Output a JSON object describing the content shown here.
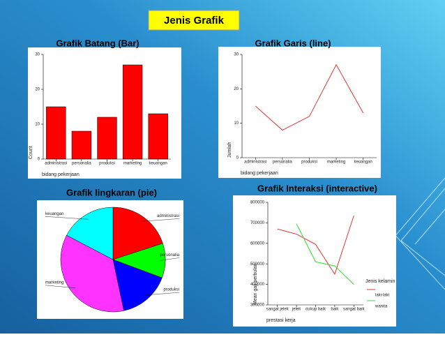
{
  "title": "Jenis Grafik",
  "chart_data": [
    {
      "type": "bar",
      "title": "Grafik Batang (Bar)",
      "x_label": "bidang pekerjaan",
      "y_label": "Count",
      "categories": [
        "administrasi",
        "personalia",
        "produksi",
        "marketing",
        "keuangan"
      ],
      "values": [
        15,
        8,
        12,
        27,
        13
      ],
      "color": "#ff0000",
      "ylim": [
        0,
        30
      ],
      "yticks": [
        0,
        10,
        20,
        30
      ]
    },
    {
      "type": "line",
      "title": "Grafik Garis (line)",
      "x_label": "bidang pekerjaan",
      "y_label": "Jumlah",
      "categories": [
        "administrasi",
        "personalia",
        "produksi",
        "marketing",
        "keuangan"
      ],
      "values": [
        15,
        8,
        12,
        27,
        13
      ],
      "color": "#e83030",
      "ylim": [
        0,
        30
      ],
      "yticks": [
        0,
        10,
        20,
        30
      ]
    },
    {
      "type": "pie",
      "title": "Grafik lingkaran (pie)",
      "categories": [
        "administrasi",
        "personalia",
        "produksi",
        "marketing",
        "keuangan"
      ],
      "values": [
        15,
        8,
        12,
        27,
        13
      ],
      "colors": [
        "#ff0000",
        "#00ff00",
        "#0000ff",
        "#ff33ff",
        "#00ffff"
      ]
    },
    {
      "type": "line",
      "title": "Grafik Interaksi (interactive)",
      "x_label": "prestasi kerja",
      "y_label": "Mean gaji perbulan",
      "categories": [
        "sangat jelek",
        "jelek",
        "cukup baik",
        "baik",
        "sangat baik"
      ],
      "ylim": [
        300000,
        800000
      ],
      "yticks": [
        300000,
        400000,
        500000,
        600000,
        700000,
        800000
      ],
      "legend_title": "Jenis kelamin",
      "series": [
        {
          "name": "laki-laki",
          "color": "#e83030",
          "values": [
            670000,
            645000,
            595000,
            450000,
            735000
          ]
        },
        {
          "name": "wanita",
          "color": "#33dd33",
          "values": [
            null,
            695000,
            510000,
            490000,
            400000
          ]
        }
      ]
    }
  ]
}
